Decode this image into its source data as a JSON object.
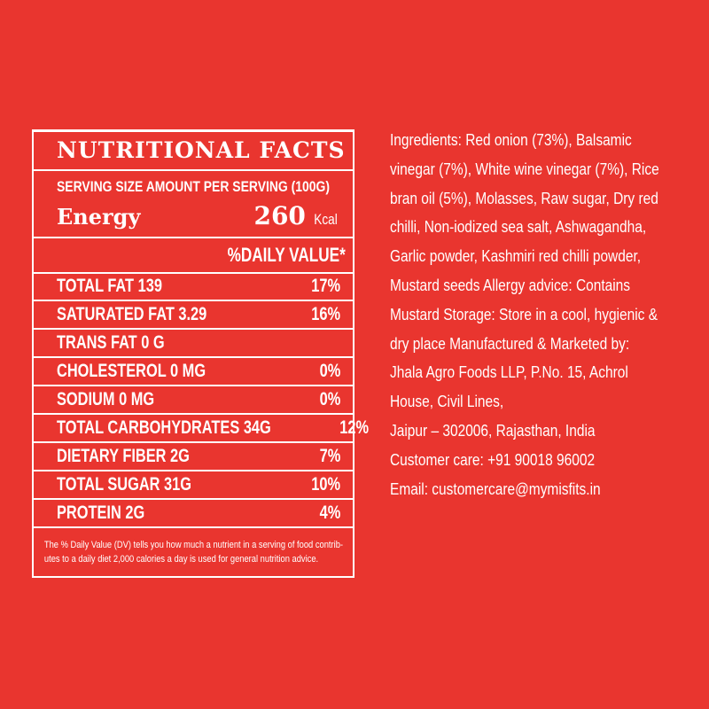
{
  "label": {
    "title": "NUTRITIONAL FACTS",
    "serving": "SERVING SIZE AMOUNT PER SERVING (100G)",
    "energy_label": "Energy",
    "energy_value": "260",
    "energy_unit": "Kcal",
    "daily_value_header": "%DAILY VALUE*",
    "rows": [
      {
        "name": "TOTAL FAT 139",
        "pct": "17%"
      },
      {
        "name": "SATURATED FAT 3.29",
        "pct": "16%"
      },
      {
        "name": "TRANS FAT 0 G",
        "pct": ""
      },
      {
        "name": "CHOLESTEROL 0 MG",
        "pct": "0%"
      },
      {
        "name": "SODIUM 0 MG",
        "pct": "0%"
      },
      {
        "name": "TOTAL CARBOHYDRATES 34G",
        "pct": "12%"
      },
      {
        "name": "DIETARY FIBER 2G",
        "pct": "7%"
      },
      {
        "name": "TOTAL SUGAR 31G",
        "pct": "10%"
      },
      {
        "name": "PROTEIN 2G",
        "pct": "4%"
      }
    ],
    "footnote_1": "The % Daily Value (DV) tells you how much a nutrient in a serving of food contrib-",
    "footnote_2": "utes to a daily diet 2,000 calories a day is used for general nutrition advice."
  },
  "info_lines": [
    "Ingredients: Red onion (73%), Balsamic",
    "vinegar (7%), White wine vinegar (7%), Rice",
    "bran oil (5%), Molasses, Raw sugar, Dry red",
    "chilli, Non-iodized sea salt, Ashwagandha,",
    "Garlic powder, Kashmiri red chilli powder,",
    "Mustard seeds Allergy advice: Contains",
    "Mustard Storage: Store in a cool, hygienic &",
    "dry place Manufactured & Marketed by:",
    "Jhala Agro Foods LLP, P.No. 15, Achrol",
    "House, Civil Lines,",
    "Jaipur – 302006, Rajasthan, India",
    "Customer care: +91 90018 96002",
    "Email: customercare@mymisfits.in"
  ],
  "colors": {
    "background": "#e9352f",
    "text": "#ffffff"
  }
}
